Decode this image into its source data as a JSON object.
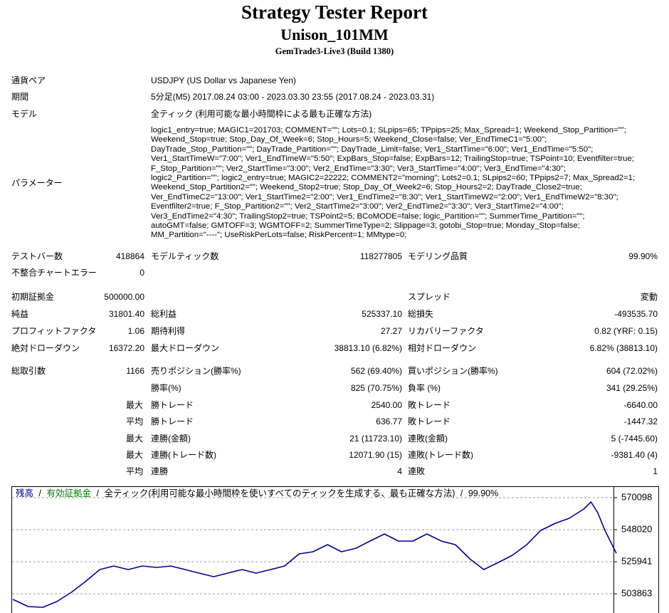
{
  "header": {
    "title": "Strategy Tester Report",
    "subtitle": "Unison_101MM",
    "build": "GemTrade3-Live3 (Build 1380)"
  },
  "info": [
    {
      "label": "通貨ペア",
      "value": "USDJPY (US Dollar vs Japanese Yen)"
    },
    {
      "label": "期間",
      "value": "5分足(M5) 2017.08.24 03:00 - 2023.03.30 23:55 (2017.08.24 - 2023.03.31)"
    },
    {
      "label": "モデル",
      "value": "全ティック (利用可能な最小時間枠による最も正確な方法)"
    }
  ],
  "parameters": {
    "label": "パラメーター",
    "lines": [
      "logic1_entry=true; MAGIC1=201703; COMMENT=\"\"; Lots=0.1; SLpips=65; TPpips=25; Max_Spread=1; Weekend_Stop_Partition=\"\";",
      "Weekend_Stop=true; Stop_Day_Of_Week=6; Stop_Hours=5; Weekend_Close=false; Ver_EndTimeC1=\"5:00\";",
      "DayTrade_Stop_Partition=\"\"; DayTrade_Partition=\"\"; DayTrade_Limit=false; Ver1_StartTime=\"6:00\"; Ver1_EndTime=\"5:50\";",
      "Ver1_StartTimeW=\"7:00\"; Ver1_EndTimeW=\"5:50\"; ExpBars_Stop=false; ExpBars=12; TrailingStop=true; TSPoint=10; Eventfilter=true;",
      "F_Stop_Partition=\"\"; Ver2_StartTime=\"3:00\"; Ver2_EndTime=\"3:30\"; Ver3_StartTime=\"4:00\"; Ver3_EndTime=\"4:30\";",
      "logic2_Partition=\"\"; logic2_entry=true; MAGIC2=22222; COMMENT2=\"morning\"; Lots2=0.1; SLpips2=60; TPpips2=7; Max_Spread2=1;",
      "Weekend_Stop_Partition2=\"\"; Weekend_Stop2=true; Stop_Day_Of_Week2=6; Stop_Hours2=2; DayTrade_Close2=true;",
      "Ver_EndTimeC2=\"13:00\"; Ver1_StartTime2=\"2:00\"; Ver1_EndTime2=\"8:30\"; Ver1_StartTimeW2=\"2:00\"; Ver1_EndTimeW2=\"8:30\";",
      "Eventfilter2=true; F_Stop_Partition2=\"\"; Ver2_StartTime2=\"3:00\"; Ver2_EndTime2=\"3:30\"; Ver3_StartTime2=\"4:00\";",
      "Ver3_EndTime2=\"4:30\"; TrailingStop2=true; TSPoint2=5; BCoMODE=false; logic_Partition=\"\"; SummerTime_Partition=\"\";",
      "autoGMT=false; GMTOFF=3; WGMTOFF=2; SummerTimeType=2; Slippage=3; gotobi_Stop=true; Monday_Stop=false;",
      "MM_Partition=\"----\"; UseRiskPerLots=false; RiskPercent=1; MMtype=0;"
    ]
  },
  "stats": [
    {
      "l1": "テストバー数",
      "v1": "418864",
      "l2": "モデルティック数",
      "v2": "118277805",
      "l3": "モデリング品質",
      "v3": "99.90%"
    },
    {
      "l1": "不整合チャートエラー",
      "v1": "0"
    },
    {
      "l1": "初期証拠金",
      "v1": "500000.00",
      "l3": "スプレッド",
      "v3": "変動"
    },
    {
      "l1": "純益",
      "v1": "31801.40",
      "l2": "総利益",
      "v2": "525337.10",
      "l3": "総損失",
      "v3": "-493535.70"
    },
    {
      "l1": "プロフィットファクタ",
      "v1": "1.06",
      "l2": "期待利得",
      "v2": "27.27",
      "l3": "リカバリーファクタ",
      "v3": "0.82 (YRF: 0.15)"
    },
    {
      "l1": "絶対ドローダウン",
      "v1": "16372.20",
      "l2": "最大ドローダウン",
      "v2": "38813.10 (6.82%)",
      "l3": "相対ドローダウン",
      "v3": "6.82% (38813.10)"
    },
    {
      "l1": "総取引数",
      "v1": "1166",
      "l2": "売りポジション(勝率%)",
      "v2": "562 (69.40%)",
      "l3": "買いポジション(勝率%)",
      "v3": "604 (72.02%)"
    },
    {
      "l2": "勝率(%)",
      "v2": "825 (70.75%)",
      "l3": "負率 (%)",
      "v3": "341 (29.25%)"
    },
    {
      "q": "最大",
      "l2": "勝トレード",
      "v2": "2540.00",
      "l3": "敗トレード",
      "v3": "-6640.00"
    },
    {
      "q": "平均",
      "l2": "勝トレード",
      "v2": "636.77",
      "l3": "敗トレード",
      "v3": "-1447.32"
    },
    {
      "q": "最大",
      "l2": "連勝(金額)",
      "v2": "21 (11723.10)",
      "l3": "連敗(金額)",
      "v3": "5 (-7445.60)"
    },
    {
      "q": "最大",
      "l2": "連勝(トレード数)",
      "v2": "12071.90 (15)",
      "l3": "連敗(トレード数)",
      "v3": "-9381.40 (4)"
    },
    {
      "q": "平均",
      "l2": "連勝",
      "v2": "4",
      "l3": "連敗",
      "v3": "1"
    }
  ],
  "chart_data": {
    "type": "line",
    "separator": "/",
    "equity_label": "有効証拠金",
    "equity_color": "#008000",
    "title": "全ティック(利用可能な最小時間枠を使いすべてのティックを生成する、最も正確な方法)",
    "quality": "99.90%",
    "x": [
      0,
      30,
      58,
      85,
      113,
      140,
      168,
      195,
      223,
      250,
      278,
      305,
      333,
      360,
      388,
      415,
      443,
      470,
      498,
      525,
      553,
      580,
      608,
      635,
      663,
      690,
      718,
      745,
      773,
      800,
      828,
      855,
      883,
      910,
      938,
      965,
      993,
      1020,
      1048,
      1075,
      1103,
      1117,
      1130,
      1144,
      1166
    ],
    "series": [
      {
        "name": "残高",
        "color": "#00008b",
        "values": [
          500000,
          495021,
          494530,
          498456,
          504835,
          512195,
          520537,
          522991,
          520537,
          522991,
          522009,
          522991,
          520537,
          518084,
          515630,
          518084,
          520537,
          518084,
          520537,
          522991,
          531333,
          532805,
          537712,
          532805,
          535258,
          540165,
          545072,
          540165,
          540165,
          545072,
          540165,
          537712,
          527898,
          520537,
          525444,
          530351,
          537712,
          547526,
          552433,
          555868,
          562247,
          567154,
          559793,
          547526,
          531801
        ]
      }
    ],
    "xlim": [
      0,
      1166
    ],
    "ylim": [
      490615,
      577949
    ],
    "yticks": [
      503863,
      525941,
      548020,
      570098
    ],
    "grid": true
  }
}
